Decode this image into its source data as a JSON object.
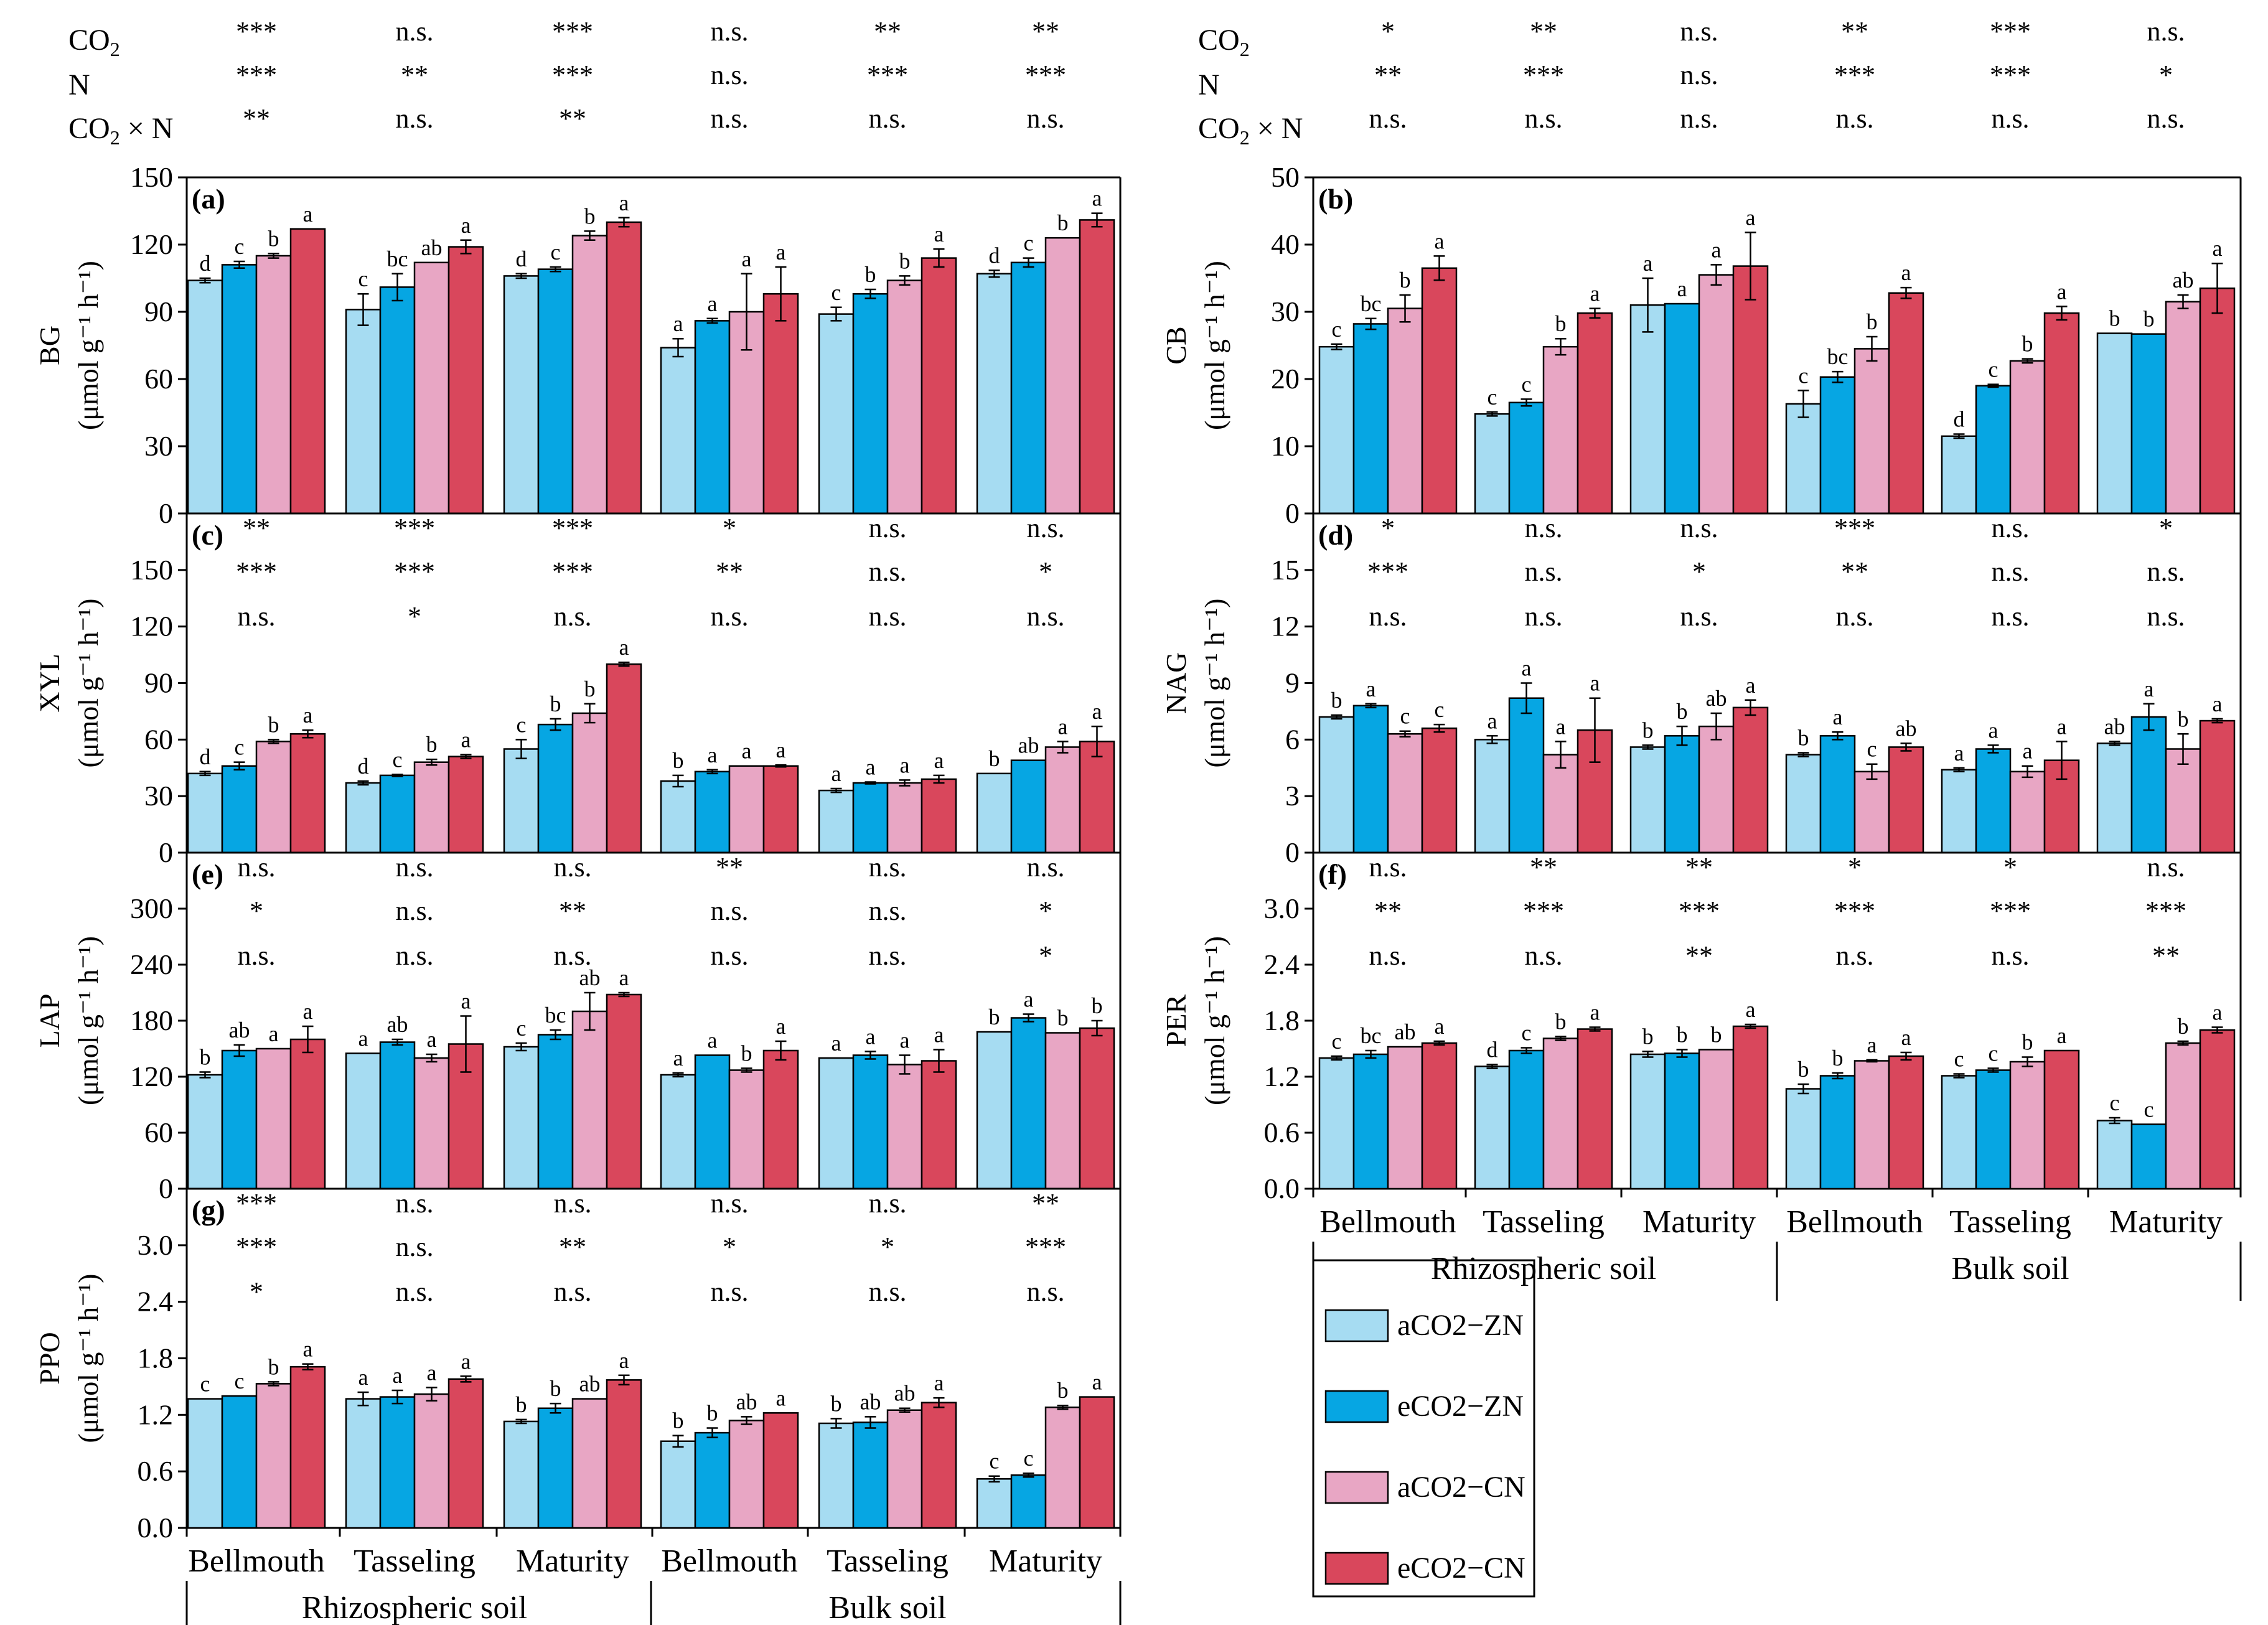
{
  "header": {
    "labels": [
      "CO2",
      "N",
      "CO2 × N"
    ],
    "left": [
      [
        "***",
        "n.s.",
        "***",
        "n.s.",
        "**",
        "**"
      ],
      [
        "***",
        "**",
        "***",
        "n.s.",
        "***",
        "***"
      ],
      [
        "**",
        "n.s.",
        "**",
        "n.s.",
        "n.s.",
        "n.s."
      ]
    ],
    "right": [
      [
        "*",
        "**",
        "n.s.",
        "**",
        "***",
        "n.s."
      ],
      [
        "**",
        "***",
        "n.s.",
        "***",
        "***",
        "*"
      ],
      [
        "n.s.",
        "n.s.",
        "n.s.",
        "n.s.",
        "n.s.",
        "n.s."
      ]
    ]
  },
  "legend": [
    {
      "label": "aCO2−ZN",
      "color": "#a6dcf2"
    },
    {
      "label": "eCO2−ZN",
      "color": "#06a6e3"
    },
    {
      "label": "aCO2−CN",
      "color": "#e8a6c4"
    },
    {
      "label": "eCO2−CN",
      "color": "#d9475c"
    }
  ],
  "x_axis": {
    "categories": [
      "Bellmouth",
      "Tasseling",
      "Maturity",
      "Bellmouth",
      "Tasseling",
      "Maturity"
    ],
    "groups": [
      "Rhizospheric soil",
      "Bulk soil"
    ]
  },
  "chart_data": [
    {
      "id": "a",
      "type": "bar",
      "panel_label": "(a)",
      "ylabel": "BG",
      "unit": "(μmol g⁻¹ h⁻¹)",
      "ylim": [
        0,
        150
      ],
      "ticks": [
        "0",
        "30",
        "60",
        "90",
        "120",
        "150"
      ],
      "categories": [
        "Bellmouth",
        "Tasseling",
        "Maturity",
        "Bellmouth",
        "Tasseling",
        "Maturity"
      ],
      "series": [
        {
          "name": "aCO2−ZN",
          "values": [
            104,
            91,
            106,
            74,
            89,
            107
          ],
          "errors": [
            1,
            7,
            1,
            4,
            3,
            1.5
          ]
        },
        {
          "name": "eCO2−ZN",
          "values": [
            111,
            101,
            109,
            86,
            98,
            112
          ],
          "errors": [
            1.5,
            6,
            1,
            1,
            2,
            2
          ]
        },
        {
          "name": "aCO2−CN",
          "values": [
            115,
            112,
            124,
            90,
            104,
            123
          ],
          "errors": [
            1,
            0,
            2,
            17,
            2,
            0
          ]
        },
        {
          "name": "eCO2−CN",
          "values": [
            127,
            119,
            130,
            98,
            114,
            131
          ],
          "errors": [
            0,
            3,
            2,
            12,
            4,
            3
          ]
        }
      ],
      "letters": [
        [
          "d",
          "c",
          "b",
          "a"
        ],
        [
          "c",
          "bc",
          "ab",
          "a"
        ],
        [
          "d",
          "c",
          "b",
          "a"
        ],
        [
          "a",
          "a",
          "a",
          "a"
        ],
        [
          "c",
          "b",
          "b",
          "a"
        ],
        [
          "d",
          "c",
          "b",
          "a"
        ]
      ],
      "sig": null
    },
    {
      "id": "b",
      "type": "bar",
      "panel_label": "(b)",
      "ylabel": "CB",
      "unit": "(μmol g⁻¹ h⁻¹)",
      "ylim": [
        0,
        50
      ],
      "ticks": [
        "0",
        "10",
        "20",
        "30",
        "40",
        "50"
      ],
      "categories": [
        "Bellmouth",
        "Tasseling",
        "Maturity",
        "Bellmouth",
        "Tasseling",
        "Maturity"
      ],
      "series": [
        {
          "name": "aCO2−ZN",
          "values": [
            24.8,
            14.8,
            31,
            16.3,
            11.5,
            26.8
          ],
          "errors": [
            0.4,
            0.3,
            4,
            2,
            0.3,
            0
          ]
        },
        {
          "name": "eCO2−ZN",
          "values": [
            28.2,
            16.5,
            31.2,
            20.3,
            19,
            26.7
          ],
          "errors": [
            0.8,
            0.5,
            0,
            0.8,
            0.2,
            0
          ]
        },
        {
          "name": "aCO2−CN",
          "values": [
            30.5,
            24.8,
            35.5,
            24.5,
            22.7,
            31.5
          ],
          "errors": [
            2,
            1.2,
            1.5,
            1.8,
            0.3,
            1
          ]
        },
        {
          "name": "eCO2−CN",
          "values": [
            36.5,
            29.8,
            36.8,
            32.8,
            29.8,
            33.5
          ],
          "errors": [
            1.8,
            0.7,
            5,
            0.8,
            1,
            3.7
          ]
        }
      ],
      "letters": [
        [
          "c",
          "bc",
          "b",
          "a"
        ],
        [
          "c",
          "c",
          "b",
          "a"
        ],
        [
          "a",
          "a",
          "a",
          "a"
        ],
        [
          "c",
          "bc",
          "b",
          "a"
        ],
        [
          "d",
          "c",
          "b",
          "a"
        ],
        [
          "b",
          "b",
          "ab",
          "a"
        ]
      ],
      "sig": null
    },
    {
      "id": "c",
      "type": "bar",
      "panel_label": "(c)",
      "ylabel": "XYL",
      "unit": "(μmol g⁻¹ h⁻¹)",
      "ylim": [
        0,
        180
      ],
      "ticks": [
        "0",
        "30",
        "60",
        "90",
        "120",
        "150"
      ],
      "categories": [
        "Bellmouth",
        "Tasseling",
        "Maturity",
        "Bellmouth",
        "Tasseling",
        "Maturity"
      ],
      "series": [
        {
          "name": "aCO2−ZN",
          "values": [
            42,
            37,
            55,
            38,
            33,
            42
          ],
          "errors": [
            1,
            1,
            5,
            3,
            1,
            0
          ]
        },
        {
          "name": "eCO2−ZN",
          "values": [
            46,
            41,
            68,
            43,
            37,
            49
          ],
          "errors": [
            2,
            0.5,
            3,
            1,
            0.5,
            0
          ]
        },
        {
          "name": "aCO2−CN",
          "values": [
            59,
            48,
            74,
            46,
            37,
            56
          ],
          "errors": [
            1,
            1.5,
            5,
            0,
            1.5,
            3
          ]
        },
        {
          "name": "eCO2−CN",
          "values": [
            63,
            51,
            100,
            46,
            39,
            59
          ],
          "errors": [
            2,
            1,
            1,
            0.5,
            2,
            8
          ]
        }
      ],
      "letters": [
        [
          "d",
          "c",
          "b",
          "a"
        ],
        [
          "d",
          "c",
          "b",
          "a"
        ],
        [
          "c",
          "b",
          "b",
          "a"
        ],
        [
          "b",
          "a",
          "a",
          "a"
        ],
        [
          "a",
          "a",
          "a",
          "a"
        ],
        [
          "b",
          "ab",
          "a",
          "a"
        ]
      ],
      "sig": [
        [
          "**",
          "***",
          "***",
          "*",
          "n.s.",
          "n.s."
        ],
        [
          "***",
          "***",
          "***",
          "**",
          "n.s.",
          "*"
        ],
        [
          "n.s.",
          "*",
          "n.s.",
          "n.s.",
          "n.s.",
          "n.s."
        ]
      ]
    },
    {
      "id": "d",
      "type": "bar",
      "panel_label": "(d)",
      "ylabel": "NAG",
      "unit": "(μmol g⁻¹ h⁻¹)",
      "ylim": [
        0,
        18
      ],
      "ticks": [
        "0",
        "3",
        "6",
        "9",
        "12",
        "15"
      ],
      "categories": [
        "Bellmouth",
        "Tasseling",
        "Maturity",
        "Bellmouth",
        "Tasseling",
        "Maturity"
      ],
      "series": [
        {
          "name": "aCO2−ZN",
          "values": [
            7.2,
            6,
            5.6,
            5.2,
            4.4,
            5.8
          ],
          "errors": [
            0.1,
            0.2,
            0.1,
            0.1,
            0.1,
            0.1
          ]
        },
        {
          "name": "eCO2−ZN",
          "values": [
            7.8,
            8.2,
            6.2,
            6.2,
            5.5,
            7.2
          ],
          "errors": [
            0.1,
            0.8,
            0.5,
            0.2,
            0.2,
            0.7
          ]
        },
        {
          "name": "aCO2−CN",
          "values": [
            6.3,
            5.2,
            6.7,
            4.3,
            4.3,
            5.5
          ],
          "errors": [
            0.15,
            0.7,
            0.7,
            0.4,
            0.3,
            0.8
          ]
        },
        {
          "name": "eCO2−CN",
          "values": [
            6.6,
            6.5,
            7.7,
            5.6,
            4.9,
            7.0
          ],
          "errors": [
            0.2,
            1.7,
            0.4,
            0.2,
            1.0,
            0.1
          ]
        }
      ],
      "letters": [
        [
          "b",
          "a",
          "c",
          "c"
        ],
        [
          "a",
          "a",
          "a",
          "a"
        ],
        [
          "b",
          "b",
          "ab",
          "a"
        ],
        [
          "b",
          "a",
          "c",
          "ab"
        ],
        [
          "a",
          "a",
          "a",
          "a"
        ],
        [
          "ab",
          "a",
          "b",
          "a"
        ]
      ],
      "sig": [
        [
          "*",
          "n.s.",
          "n.s.",
          "***",
          "n.s.",
          "*"
        ],
        [
          "***",
          "n.s.",
          "*",
          "**",
          "n.s.",
          "n.s."
        ],
        [
          "n.s.",
          "n.s.",
          "n.s.",
          "n.s.",
          "n.s.",
          "n.s."
        ]
      ]
    },
    {
      "id": "e",
      "type": "bar",
      "panel_label": "(e)",
      "ylabel": "LAP",
      "unit": "(μmol g⁻¹ h⁻¹)",
      "ylim": [
        0,
        360
      ],
      "ticks": [
        "0",
        "60",
        "120",
        "180",
        "240",
        "300"
      ],
      "categories": [
        "Bellmouth",
        "Tasseling",
        "Maturity",
        "Bellmouth",
        "Tasseling",
        "Maturity"
      ],
      "series": [
        {
          "name": "aCO2−ZN",
          "values": [
            122,
            145,
            152,
            122,
            140,
            168
          ],
          "errors": [
            3,
            0,
            4,
            2,
            0,
            0
          ]
        },
        {
          "name": "eCO2−ZN",
          "values": [
            148,
            157,
            165,
            143,
            143,
            183
          ],
          "errors": [
            6,
            3,
            5,
            0,
            4,
            4
          ]
        },
        {
          "name": "aCO2−CN",
          "values": [
            150,
            140,
            190,
            127,
            133,
            167
          ],
          "errors": [
            0,
            4,
            20,
            2,
            10,
            0
          ]
        },
        {
          "name": "eCO2−CN",
          "values": [
            160,
            155,
            208,
            148,
            137,
            172
          ],
          "errors": [
            14,
            30,
            2,
            10,
            12,
            8
          ]
        }
      ],
      "letters": [
        [
          "b",
          "ab",
          "a",
          "a"
        ],
        [
          "a",
          "ab",
          "a",
          "a"
        ],
        [
          "c",
          "bc",
          "ab",
          "a"
        ],
        [
          "a",
          "a",
          "b",
          "a"
        ],
        [
          "a",
          "a",
          "a",
          "a"
        ],
        [
          "b",
          "a",
          "b",
          "b"
        ]
      ],
      "sig": [
        [
          "n.s.",
          "n.s.",
          "n.s.",
          "**",
          "n.s.",
          "n.s."
        ],
        [
          "*",
          "n.s.",
          "**",
          "n.s.",
          "n.s.",
          "*"
        ],
        [
          "n.s.",
          "n.s.",
          "n.s.",
          "n.s.",
          "n.s.",
          "*"
        ]
      ]
    },
    {
      "id": "f",
      "type": "bar",
      "panel_label": "(f)",
      "ylabel": "PER",
      "unit": "(μmol g⁻¹ h⁻¹)",
      "ylim": [
        0,
        3.6
      ],
      "ticks": [
        "0.0",
        "0.6",
        "1.2",
        "1.8",
        "2.4",
        "3.0"
      ],
      "categories": [
        "Bellmouth",
        "Tasseling",
        "Maturity",
        "Bellmouth",
        "Tasseling",
        "Maturity"
      ],
      "series": [
        {
          "name": "aCO2−ZN",
          "values": [
            1.4,
            1.31,
            1.44,
            1.07,
            1.21,
            0.73
          ],
          "errors": [
            0.02,
            0.02,
            0.03,
            0.05,
            0.02,
            0.03
          ]
        },
        {
          "name": "eCO2−ZN",
          "values": [
            1.44,
            1.48,
            1.45,
            1.21,
            1.27,
            0.69
          ],
          "errors": [
            0.04,
            0.03,
            0.04,
            0.03,
            0.02,
            0
          ]
        },
        {
          "name": "aCO2−CN",
          "values": [
            1.52,
            1.61,
            1.49,
            1.37,
            1.36,
            1.56
          ],
          "errors": [
            0,
            0.02,
            0,
            0.01,
            0.05,
            0.02
          ]
        },
        {
          "name": "eCO2−CN",
          "values": [
            1.56,
            1.71,
            1.74,
            1.42,
            1.48,
            1.7
          ],
          "errors": [
            0.02,
            0.02,
            0.02,
            0.04,
            0,
            0.03
          ]
        }
      ],
      "letters": [
        [
          "c",
          "bc",
          "ab",
          "a"
        ],
        [
          "d",
          "c",
          "b",
          "a"
        ],
        [
          "b",
          "b",
          "b",
          "a"
        ],
        [
          "b",
          "b",
          "a",
          "a"
        ],
        [
          "c",
          "c",
          "b",
          "a"
        ],
        [
          "c",
          "c",
          "b",
          "a"
        ]
      ],
      "sig": [
        [
          "n.s.",
          "**",
          "**",
          "*",
          "*",
          "n.s."
        ],
        [
          "**",
          "***",
          "***",
          "***",
          "***",
          "***"
        ],
        [
          "n.s.",
          "n.s.",
          "**",
          "n.s.",
          "n.s.",
          "**"
        ]
      ]
    },
    {
      "id": "g",
      "type": "bar",
      "panel_label": "(g)",
      "ylabel": "PPO",
      "unit": "(μmol g⁻¹ h⁻¹)",
      "ylim": [
        0,
        3.6
      ],
      "ticks": [
        "0.0",
        "0.6",
        "1.2",
        "1.8",
        "2.4",
        "3.0"
      ],
      "categories": [
        "Bellmouth",
        "Tasseling",
        "Maturity",
        "Bellmouth",
        "Tasseling",
        "Maturity"
      ],
      "series": [
        {
          "name": "aCO2−ZN",
          "values": [
            1.37,
            1.37,
            1.13,
            0.92,
            1.11,
            0.52
          ],
          "errors": [
            0,
            0.07,
            0.02,
            0.06,
            0.05,
            0.03
          ]
        },
        {
          "name": "eCO2−ZN",
          "values": [
            1.4,
            1.39,
            1.27,
            1.01,
            1.12,
            0.56
          ],
          "errors": [
            0,
            0.07,
            0.05,
            0.05,
            0.06,
            0.02
          ]
        },
        {
          "name": "aCO2−CN",
          "values": [
            1.53,
            1.42,
            1.37,
            1.14,
            1.25,
            1.28
          ],
          "errors": [
            0.02,
            0.07,
            0,
            0.04,
            0.02,
            0.02
          ]
        },
        {
          "name": "eCO2−CN",
          "values": [
            1.71,
            1.58,
            1.57,
            1.22,
            1.33,
            1.39
          ],
          "errors": [
            0.03,
            0.03,
            0.05,
            0,
            0.05,
            0
          ]
        }
      ],
      "letters": [
        [
          "c",
          "c",
          "b",
          "a"
        ],
        [
          "a",
          "a",
          "a",
          "a"
        ],
        [
          "b",
          "b",
          "ab",
          "a"
        ],
        [
          "b",
          "b",
          "ab",
          "a"
        ],
        [
          "b",
          "ab",
          "ab",
          "a"
        ],
        [
          "c",
          "c",
          "b",
          "a"
        ]
      ],
      "sig": [
        [
          "***",
          "n.s.",
          "n.s.",
          "n.s.",
          "n.s.",
          "**"
        ],
        [
          "***",
          "n.s.",
          "**",
          "*",
          "*",
          "***"
        ],
        [
          "*",
          "n.s.",
          "n.s.",
          "n.s.",
          "n.s.",
          "n.s."
        ]
      ]
    }
  ]
}
